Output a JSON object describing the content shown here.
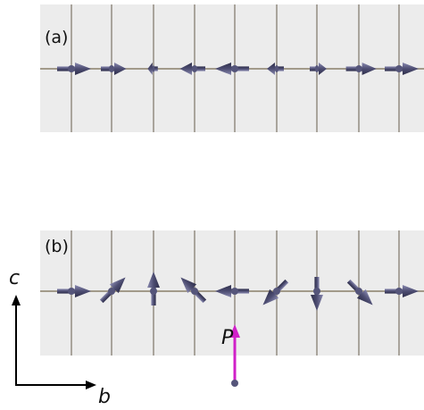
{
  "panels": [
    {
      "label": "(a)"
    },
    {
      "label": "(b)"
    }
  ],
  "axes": {
    "vertical": "c",
    "horizontal": "b"
  },
  "polarization": "P"
}
